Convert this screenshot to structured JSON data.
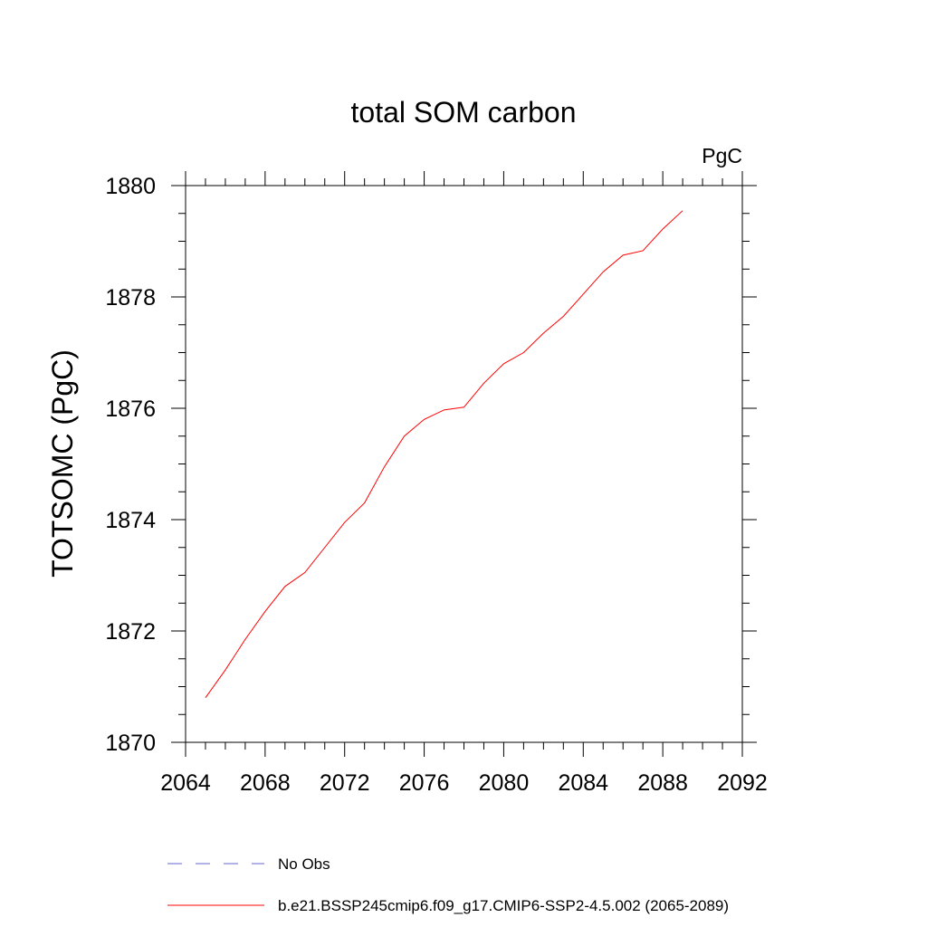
{
  "chart_data": {
    "type": "line",
    "title": "total SOM carbon",
    "units_label": "PgC",
    "xlabel": "",
    "ylabel": "TOTSOMC  (PgC)",
    "xlim": [
      2064,
      2092
    ],
    "ylim": [
      1870,
      1880
    ],
    "x_ticks": [
      2064,
      2068,
      2072,
      2076,
      2080,
      2084,
      2088,
      2092
    ],
    "y_ticks": [
      1870,
      1872,
      1874,
      1876,
      1878,
      1880
    ],
    "x_minor_step": 1,
    "y_minor_step": 0.5,
    "grid": false,
    "legend_position": "bottom",
    "series": [
      {
        "name": "b.e21.BSSP245cmip6.f09_g17.CMIP6-SSP2-4.5.002 (2065-2089)",
        "color": "#ff0000",
        "dash": "solid",
        "x": [
          2065,
          2066,
          2067,
          2068,
          2069,
          2070,
          2071,
          2072,
          2073,
          2074,
          2075,
          2076,
          2077,
          2078,
          2079,
          2080,
          2081,
          2082,
          2083,
          2084,
          2085,
          2086,
          2087,
          2088,
          2089
        ],
        "y": [
          1870.8,
          1871.3,
          1871.85,
          1872.35,
          1872.8,
          1873.05,
          1873.5,
          1873.95,
          1874.3,
          1874.95,
          1875.5,
          1875.8,
          1875.97,
          1876.02,
          1876.45,
          1876.8,
          1877.0,
          1877.35,
          1877.65,
          1878.05,
          1878.45,
          1878.75,
          1878.83,
          1879.22,
          1879.55
        ]
      }
    ],
    "legend": [
      {
        "label": "No Obs",
        "color": "#6666cc",
        "dash": "dashed"
      },
      {
        "label": "b.e21.BSSP245cmip6.f09_g17.CMIP6-SSP2-4.5.002 (2065-2089)",
        "color": "#ff0000",
        "dash": "solid"
      }
    ]
  }
}
